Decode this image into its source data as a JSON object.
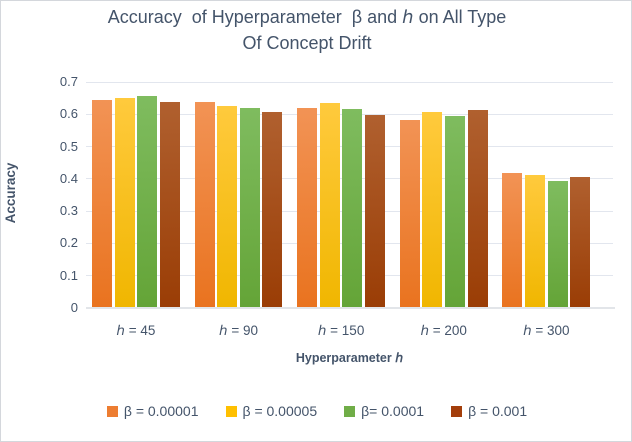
{
  "window": {
    "background": "#ffffff",
    "border_color": "#d4d7dc",
    "text_color": "#44546A"
  },
  "chart_data": {
    "type": "bar",
    "title_line1": "Accuracy  of Hyperparameter  β and ℎ on All Type",
    "title_line2": "Of Concept Drift",
    "ylabel": "Accuracy",
    "xlabel": "Hyperparameter ℎ",
    "ylim": [
      0,
      0.7
    ],
    "ytick_labels": [
      "0",
      "0.1",
      "0.2",
      "0.3",
      "0.4",
      "0.5",
      "0.6",
      "0.7"
    ],
    "grid": true,
    "legend_position": "bottom",
    "categories": [
      "ℎ = 45",
      "ℎ = 90",
      "ℎ = 150",
      "ℎ = 200",
      "ℎ = 300"
    ],
    "series": [
      {
        "name": "β = 0.00001",
        "color": "#ED7D31",
        "color_top": "#F29355",
        "color_bottom": "#E9731F",
        "values": [
          0.643,
          0.638,
          0.621,
          0.584,
          0.417
        ]
      },
      {
        "name": "β = 0.00005",
        "color": "#FFC000",
        "color_top": "#FFCA3D",
        "color_bottom": "#F0B600",
        "values": [
          0.651,
          0.627,
          0.636,
          0.606,
          0.411
        ]
      },
      {
        "name": "β= 0.0001",
        "color": "#70AD47",
        "color_top": "#7FBC5F",
        "color_bottom": "#64A437",
        "values": [
          0.656,
          0.62,
          0.616,
          0.596,
          0.393
        ]
      },
      {
        "name": "β = 0.001",
        "color": "#A33E0B",
        "color_top": "#B0602F",
        "color_bottom": "#9A3D05",
        "values": [
          0.639,
          0.608,
          0.599,
          0.612,
          0.406
        ]
      }
    ]
  }
}
